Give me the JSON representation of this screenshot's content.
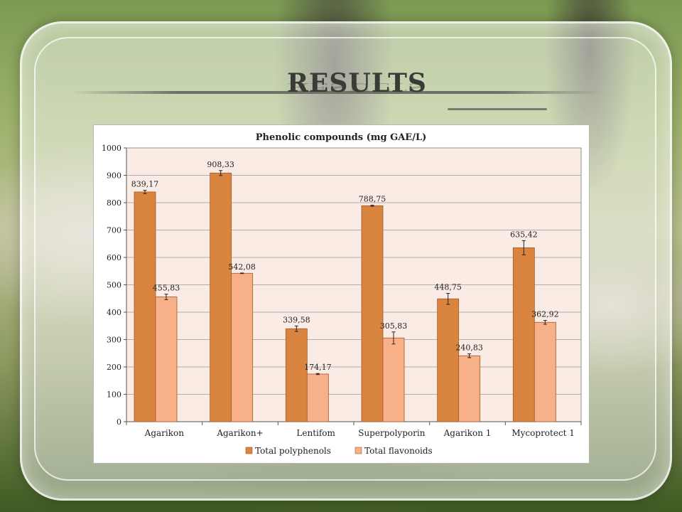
{
  "slide": {
    "title": "RESULTS"
  },
  "chart_data": {
    "type": "bar",
    "title": "Phenolic compounds (mg GAE/L)",
    "xlabel": "",
    "ylabel": "",
    "ylim": [
      0,
      1000
    ],
    "yticks": [
      0,
      100,
      200,
      300,
      400,
      500,
      600,
      700,
      800,
      900,
      1000
    ],
    "categories": [
      "Agarikon",
      "Agarikon+",
      "Lentifom",
      "Superpolyporin",
      "Agarikon 1",
      "Mycoprotect 1"
    ],
    "series": [
      {
        "name": "Total polyphenols",
        "color": "#d9843f",
        "values": [
          839.17,
          908.33,
          339.58,
          788.75,
          448.75,
          635.42
        ],
        "labels": [
          "839,17",
          "908,33",
          "339,58",
          "788,75",
          "448,75",
          "635,42"
        ],
        "errors": [
          6,
          9,
          10,
          2,
          20,
          26
        ]
      },
      {
        "name": "Total flavonoids",
        "color": "#f8b088",
        "values": [
          455.83,
          542.08,
          174.17,
          305.83,
          240.83,
          362.92
        ],
        "labels": [
          "455,83",
          "542,08",
          "174,17",
          "305,83",
          "240,83",
          "362,92"
        ],
        "errors": [
          10,
          1,
          2,
          22,
          7,
          7
        ]
      }
    ],
    "grid": true,
    "plot_background": "#fbebe5",
    "legend_position": "bottom"
  }
}
